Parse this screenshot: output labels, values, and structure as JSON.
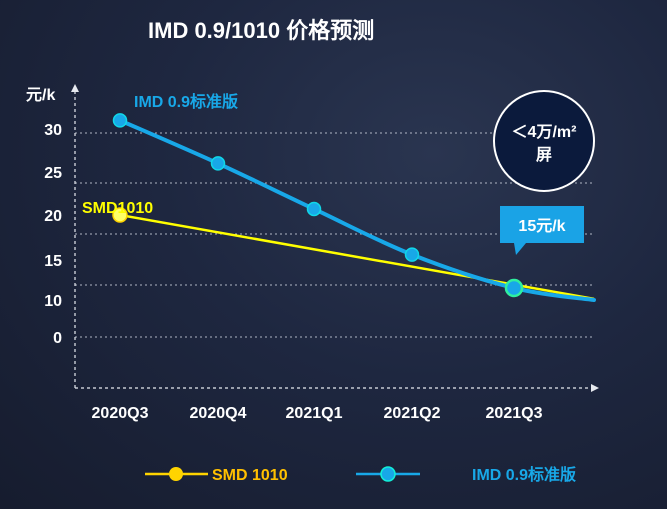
{
  "chart_data": {
    "type": "line",
    "title": "IMD 0.9/1010 价格预测",
    "ylabel": "元/k",
    "xlabel": "",
    "categories": [
      "2020Q3",
      "2020Q4",
      "2021Q1",
      "2021Q2",
      "2021Q3"
    ],
    "y_ticks": [
      "0",
      "10",
      "15",
      "20",
      "25",
      "30"
    ],
    "grid": "horizontal-dashed",
    "legend_position": "bottom",
    "series": [
      {
        "name": "SMD 1010",
        "inline_label": "SMD1010",
        "color": "#ffff00",
        "marker_color": "#ffd400",
        "values": [
          20,
          null,
          null,
          null,
          11.5
        ]
      },
      {
        "name": "IMD 0.9标准版",
        "inline_label": "IMD 0.9标准版",
        "color": "#18a8e8",
        "marker_color": "#18a8e8",
        "values": [
          31,
          26,
          20.7,
          15.6,
          11.5
        ]
      }
    ],
    "annotations": {
      "circle_line1": "＜4万/m²",
      "circle_line2": "屏",
      "callout": "15元/k"
    }
  }
}
